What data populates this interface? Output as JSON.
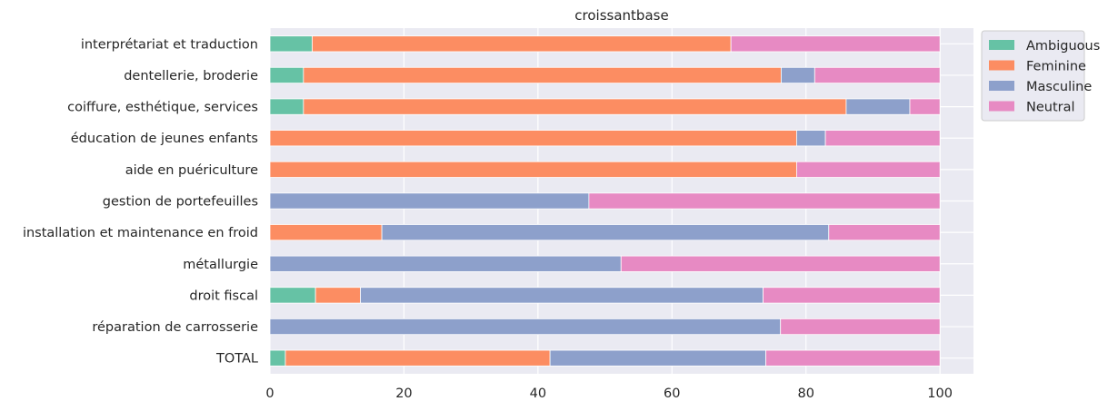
{
  "chart_data": {
    "type": "bar",
    "orientation": "horizontal",
    "stacked": true,
    "title": "croissantbase",
    "xlabel": "",
    "ylabel": "",
    "xlim": [
      0,
      105
    ],
    "xticks": [
      "0",
      "20",
      "40",
      "60",
      "80",
      "100"
    ],
    "grid": true,
    "legend_position": "outside-top-right",
    "categories": [
      "interprétariat et traduction",
      "dentellerie, broderie",
      "coiffure, esthétique, services",
      "éducation de jeunes enfants",
      "aide en puériculture",
      "gestion de portefeuilles",
      "installation et maintenance en froid",
      "métallurgie",
      "droit fiscal",
      "réparation de carrosserie",
      "TOTAL"
    ],
    "series": [
      {
        "name": "Ambiguous",
        "color": "#66c2a5",
        "values": [
          6.3,
          5,
          5,
          0,
          0,
          0,
          0,
          0,
          6.8,
          0,
          2.3
        ]
      },
      {
        "name": "Feminine",
        "color": "#fc8d62",
        "values": [
          62.5,
          71.3,
          81,
          78.6,
          78.6,
          0,
          16.7,
          0,
          6.7,
          0,
          39.5
        ]
      },
      {
        "name": "Masculine",
        "color": "#8da0cb",
        "values": [
          0,
          5,
          9.5,
          4.3,
          0,
          47.6,
          66.7,
          52.4,
          60.1,
          76.2,
          32.2
        ]
      },
      {
        "name": "Neutral",
        "color": "#e78ac3",
        "values": [
          31.2,
          18.7,
          4.5,
          17.1,
          21.4,
          52.4,
          16.6,
          47.6,
          26.4,
          23.8,
          26
        ]
      }
    ]
  }
}
